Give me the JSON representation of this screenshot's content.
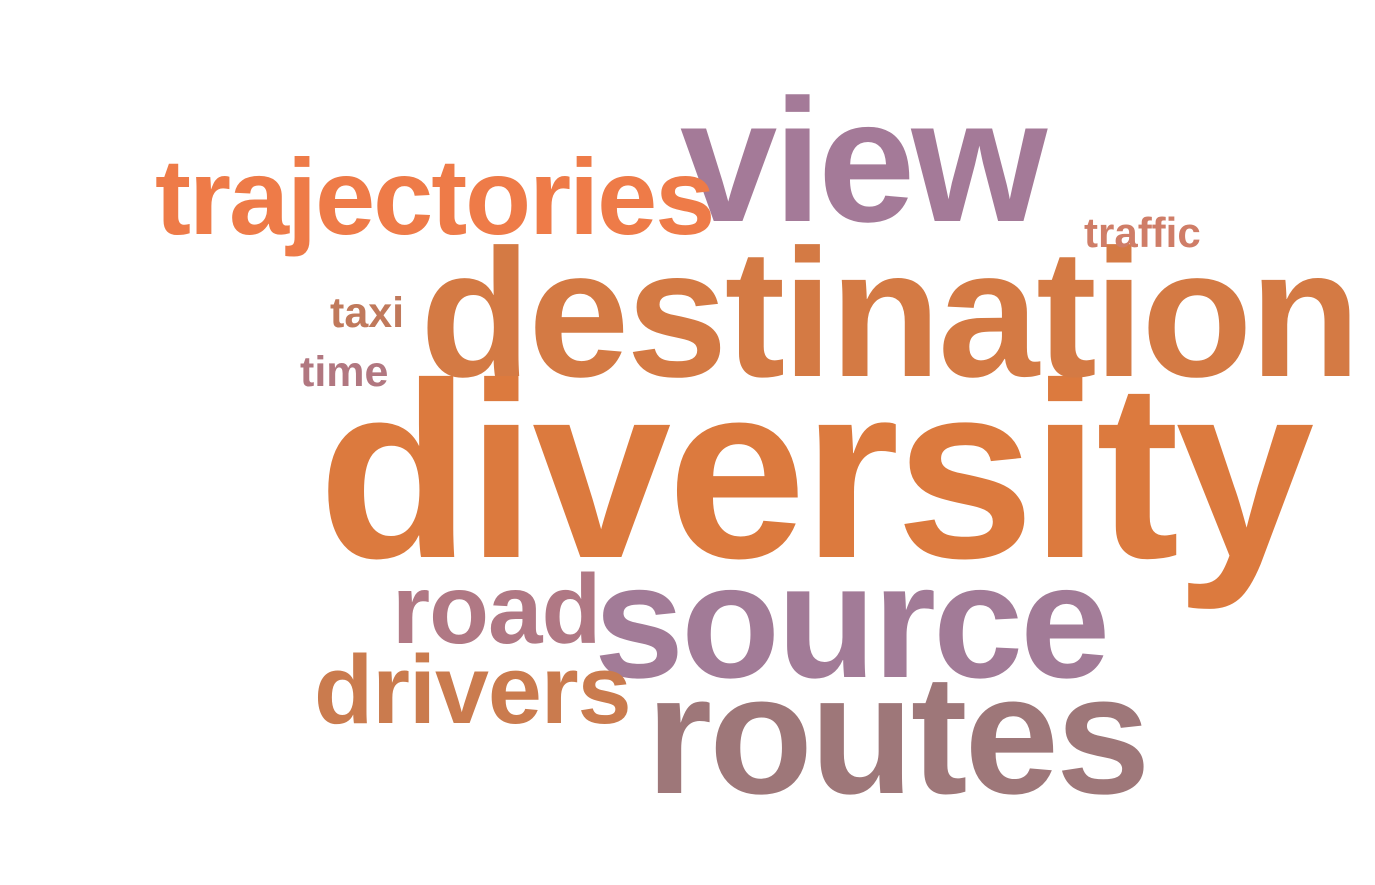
{
  "words": [
    {
      "key": "diversity",
      "text": "diversity",
      "color": "#dc7a3e"
    },
    {
      "key": "destination",
      "text": "destination",
      "color": "#d47a44"
    },
    {
      "key": "view",
      "text": "view",
      "color": "#a47a98"
    },
    {
      "key": "source",
      "text": "source",
      "color": "#a27b97"
    },
    {
      "key": "routes",
      "text": "routes",
      "color": "#9e7779"
    },
    {
      "key": "trajectories",
      "text": "trajectories",
      "color": "#ee7b48"
    },
    {
      "key": "road",
      "text": "road",
      "color": "#b07884"
    },
    {
      "key": "drivers",
      "text": "drivers",
      "color": "#ca7b4e"
    },
    {
      "key": "traffic",
      "text": "traffic",
      "color": "#cf7d67"
    },
    {
      "key": "taxi",
      "text": "taxi",
      "color": "#c0795b"
    },
    {
      "key": "time",
      "text": "time",
      "color": "#b17780"
    }
  ]
}
